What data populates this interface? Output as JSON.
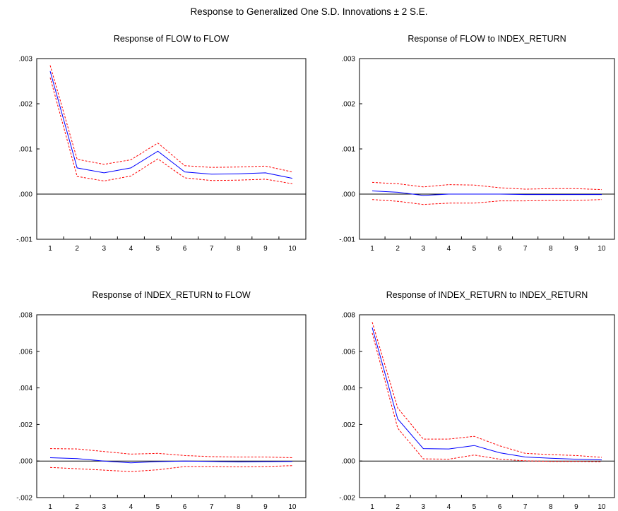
{
  "figure": {
    "title": "Response to Generalized One S.D. Innovations ± 2 S.E."
  },
  "colors": {
    "response": "#0000ff",
    "band": "#ff0000",
    "zero_line": "#000000",
    "frame": "#000000"
  },
  "chart_data": [
    {
      "type": "line",
      "title": "Response of FLOW to FLOW",
      "categories": [
        "1",
        "2",
        "3",
        "4",
        "5",
        "6",
        "7",
        "8",
        "9",
        "10"
      ],
      "ylim": [
        -0.001,
        0.003
      ],
      "yticks": [
        {
          "v": -0.001,
          "label": "-.001"
        },
        {
          "v": 0,
          "label": ".000"
        },
        {
          "v": 0.001,
          "label": ".001"
        },
        {
          "v": 0.002,
          "label": ".002"
        },
        {
          "v": 0.003,
          "label": ".003"
        }
      ],
      "grid": false,
      "series": [
        {
          "role": "response",
          "values": [
            0.00272,
            0.00058,
            0.00047,
            0.00058,
            0.00095,
            0.00049,
            0.00044,
            0.00045,
            0.00047,
            0.00035
          ]
        },
        {
          "role": "upper",
          "values": [
            0.00285,
            0.00077,
            0.00066,
            0.00076,
            0.00113,
            0.00063,
            0.00059,
            0.0006,
            0.00062,
            0.00049
          ]
        },
        {
          "role": "lower",
          "values": [
            0.00258,
            0.00039,
            0.00029,
            0.0004,
            0.00078,
            0.00036,
            0.0003,
            0.00031,
            0.00033,
            0.00023
          ]
        }
      ]
    },
    {
      "type": "line",
      "title": "Response of FLOW to INDEX_RETURN",
      "categories": [
        "1",
        "2",
        "3",
        "4",
        "5",
        "6",
        "7",
        "8",
        "9",
        "10"
      ],
      "ylim": [
        -0.001,
        0.003
      ],
      "yticks": [
        {
          "v": -0.001,
          "label": "-.001"
        },
        {
          "v": 0,
          "label": ".000"
        },
        {
          "v": 0.001,
          "label": ".001"
        },
        {
          "v": 0.002,
          "label": ".002"
        },
        {
          "v": 0.003,
          "label": ".003"
        }
      ],
      "grid": false,
      "series": [
        {
          "role": "response",
          "values": [
            7e-05,
            4e-05,
            -3e-05,
            0.0,
            0.0,
            0.0,
            -1e-05,
            -1e-05,
            -1e-05,
            -1e-05
          ]
        },
        {
          "role": "upper",
          "values": [
            0.00026,
            0.00023,
            0.00016,
            0.00021,
            0.0002,
            0.00014,
            0.00011,
            0.00012,
            0.00012,
            0.0001
          ]
        },
        {
          "role": "lower",
          "values": [
            -0.00012,
            -0.00016,
            -0.00023,
            -0.0002,
            -0.0002,
            -0.00015,
            -0.00015,
            -0.00014,
            -0.00014,
            -0.00012
          ]
        }
      ]
    },
    {
      "type": "line",
      "title": "Response of INDEX_RETURN to FLOW",
      "categories": [
        "1",
        "2",
        "3",
        "4",
        "5",
        "6",
        "7",
        "8",
        "9",
        "10"
      ],
      "ylim": [
        -0.002,
        0.008
      ],
      "yticks": [
        {
          "v": -0.002,
          "label": "-.002"
        },
        {
          "v": 0,
          "label": ".000"
        },
        {
          "v": 0.002,
          "label": ".002"
        },
        {
          "v": 0.004,
          "label": ".004"
        },
        {
          "v": 0.006,
          "label": ".006"
        },
        {
          "v": 0.008,
          "label": ".008"
        }
      ],
      "grid": false,
      "series": [
        {
          "role": "response",
          "values": [
            0.00018,
            0.00013,
            0.0,
            -0.0001,
            -3e-05,
            0.0,
            -2e-05,
            -5e-05,
            -3e-05,
            -2e-05
          ]
        },
        {
          "role": "upper",
          "values": [
            0.00068,
            0.00066,
            0.00052,
            0.00038,
            0.00042,
            0.0003,
            0.00024,
            0.00022,
            0.00022,
            0.00018
          ]
        },
        {
          "role": "lower",
          "values": [
            -0.00035,
            -0.00042,
            -0.0005,
            -0.00058,
            -0.00048,
            -0.0003,
            -0.0003,
            -0.00032,
            -0.0003,
            -0.00025
          ]
        }
      ]
    },
    {
      "type": "line",
      "title": "Response of INDEX_RETURN to INDEX_RETURN",
      "categories": [
        "1",
        "2",
        "3",
        "4",
        "5",
        "6",
        "7",
        "8",
        "9",
        "10"
      ],
      "ylim": [
        -0.002,
        0.008
      ],
      "yticks": [
        {
          "v": -0.002,
          "label": "-.002"
        },
        {
          "v": 0,
          "label": ".000"
        },
        {
          "v": 0.002,
          "label": ".002"
        },
        {
          "v": 0.004,
          "label": ".004"
        },
        {
          "v": 0.006,
          "label": ".006"
        },
        {
          "v": 0.008,
          "label": ".008"
        }
      ],
      "grid": false,
      "series": [
        {
          "role": "response",
          "values": [
            0.0073,
            0.0023,
            0.00068,
            0.00066,
            0.00085,
            0.00045,
            0.00022,
            0.00015,
            0.0001,
            6e-05
          ]
        },
        {
          "role": "upper",
          "values": [
            0.0076,
            0.0029,
            0.0012,
            0.0012,
            0.00135,
            0.00083,
            0.00042,
            0.00035,
            0.0003,
            0.0002
          ]
        },
        {
          "role": "lower",
          "values": [
            0.007,
            0.0018,
            0.00012,
            0.0001,
            0.00033,
            0.0001,
            1e-05,
            -2e-05,
            -2e-05,
            -4e-05
          ]
        }
      ]
    }
  ]
}
